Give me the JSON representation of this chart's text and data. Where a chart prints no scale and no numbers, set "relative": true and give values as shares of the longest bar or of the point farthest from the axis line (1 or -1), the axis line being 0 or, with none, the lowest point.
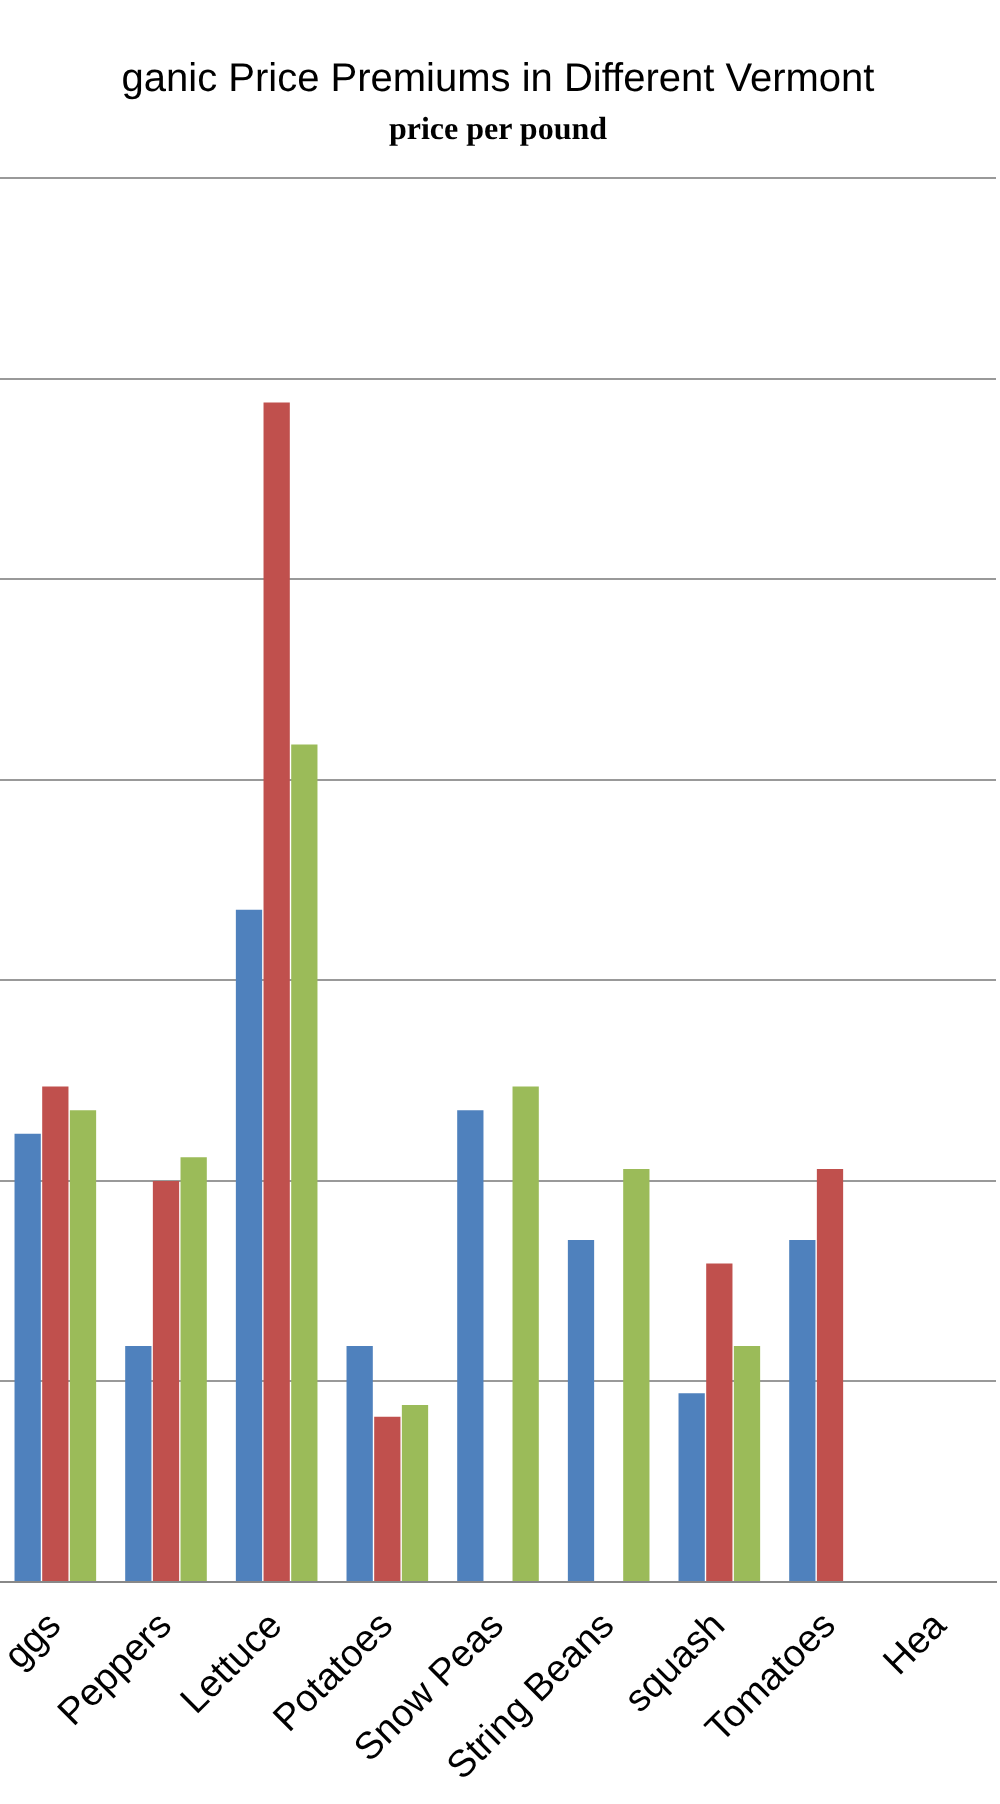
{
  "chart_data": {
    "type": "bar",
    "title": "ganic Price Premiums in Different Vermont",
    "subtitle": "price per pound",
    "relative": true,
    "grid": "y",
    "categories": [
      "ggs",
      "Peppers",
      "Lettuce",
      "Potatoes",
      "Snow Peas",
      "String Beans",
      "squash",
      "Tomatoes",
      "Hea"
    ],
    "series": [
      {
        "color": "#4f81bd",
        "values": [
          0.38,
          0.2,
          0.57,
          0.2,
          0.4,
          0.29,
          0.16,
          0.29,
          null
        ]
      },
      {
        "color": "#c0504d",
        "values": [
          0.42,
          0.34,
          1,
          0.14,
          null,
          null,
          0.27,
          0.35,
          null
        ]
      },
      {
        "color": "#9bbb59",
        "values": [
          0.4,
          0.36,
          0.71,
          0.15,
          0.42,
          0.35,
          0.2,
          null,
          null
        ]
      }
    ]
  }
}
